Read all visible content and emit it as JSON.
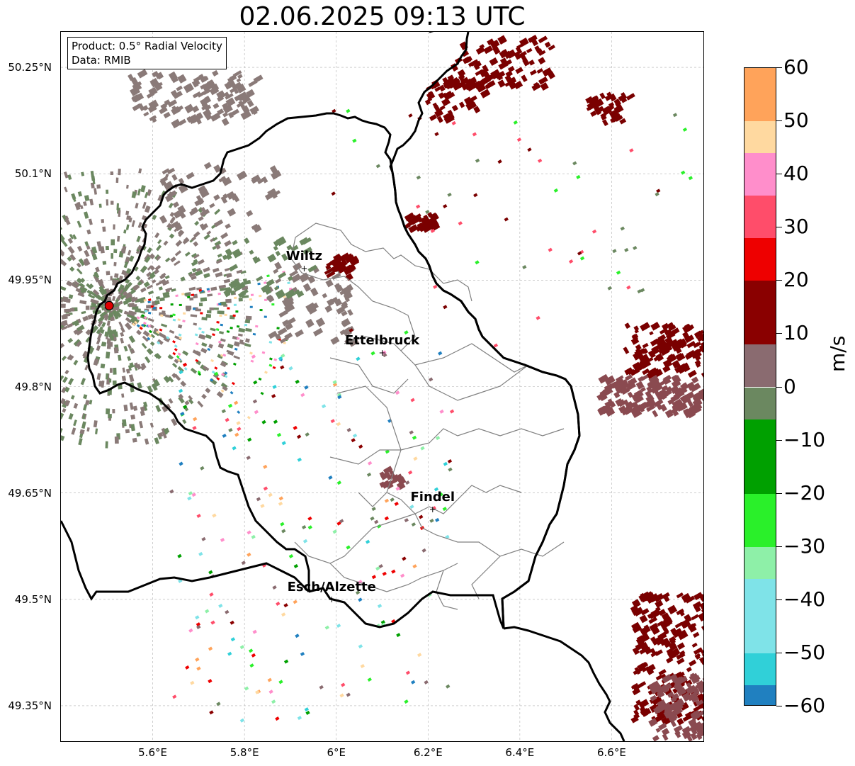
{
  "title": "02.06.2025 09:13 UTC",
  "info": {
    "product": "Product: 0.5° Radial Velocity",
    "data": "Data: RMIB"
  },
  "lat_ticks": [
    "50.25°N",
    "50.1°N",
    "49.95°N",
    "49.8°N",
    "49.65°N",
    "49.5°N",
    "49.35°N"
  ],
  "lon_ticks": [
    "5.6°E",
    "5.8°E",
    "6°E",
    "6.2°E",
    "6.4°E",
    "6.6°E"
  ],
  "cities": [
    {
      "name": "Wiltz",
      "lon": 5.93,
      "lat": 49.966
    },
    {
      "name": "Ettelbruck",
      "lon": 6.1,
      "lat": 49.847
    },
    {
      "name": "Findel",
      "lon": 6.21,
      "lat": 49.627
    },
    {
      "name": "Esch/Alzette",
      "lon": 5.99,
      "lat": 49.5
    }
  ],
  "radar_site": {
    "lon": 5.505,
    "lat": 49.914,
    "color": "#e00000"
  },
  "extent": {
    "lon": [
      5.4,
      6.8
    ],
    "lat": [
      49.3,
      50.3
    ]
  },
  "colorbar": {
    "unit": "m/s",
    "ticks": [
      "60",
      "50",
      "40",
      "30",
      "20",
      "10",
      "0",
      "−10",
      "−20",
      "−30",
      "−40",
      "−50",
      "−60"
    ],
    "range": [
      -60,
      60
    ],
    "bands": [
      {
        "from": 50,
        "to": 60,
        "color": "#ffa35a"
      },
      {
        "from": 44,
        "to": 50,
        "color": "#ffd9a0"
      },
      {
        "from": 36,
        "to": 44,
        "color": "#ff8ecb"
      },
      {
        "from": 28,
        "to": 36,
        "color": "#ff4d6a"
      },
      {
        "from": 20,
        "to": 28,
        "color": "#ee0000"
      },
      {
        "from": 8,
        "to": 20,
        "color": "#8a0000"
      },
      {
        "from": 0,
        "to": 8,
        "color": "#8a6b70"
      },
      {
        "from": -6,
        "to": 0,
        "color": "#6b8860"
      },
      {
        "from": -20,
        "to": -6,
        "color": "#00a000"
      },
      {
        "from": -30,
        "to": -20,
        "color": "#2af02a"
      },
      {
        "from": -36,
        "to": -30,
        "color": "#8ef0a8"
      },
      {
        "from": -50,
        "to": -36,
        "color": "#7fe3e8"
      },
      {
        "from": -56,
        "to": -50,
        "color": "#30d0d8"
      },
      {
        "from": -60,
        "to": -56,
        "color": "#2080c0"
      }
    ]
  },
  "colors": {
    "border": "#000000",
    "canton_border": "#808080",
    "grid": "#b0b0b0",
    "clutter": "#8a7a78",
    "clutter_green": "#6b8860",
    "receding": "#7a0000",
    "receding_light": "#8a4a50"
  }
}
